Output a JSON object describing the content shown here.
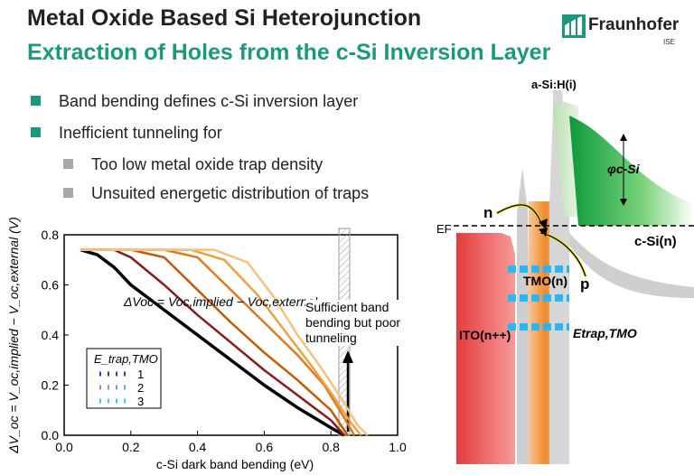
{
  "slide": {
    "title": "Metal Oxide Based Si Heterojunction",
    "subtitle": "Extraction of Holes from the c-Si Inversion Layer",
    "logo_text": "Fraunhofer",
    "logo_sub": "ISE",
    "bullets": [
      "Band bending defines c-Si inversion layer",
      "Inefficient tunneling for"
    ],
    "subbullets": [
      "Too low metal oxide trap density",
      "Unsuited energetic distribution of traps"
    ],
    "colors": {
      "title": "#222222",
      "subtitle": "#1a9a7a",
      "bullet": "#1a9a7a",
      "subbullet": "#a8a8a8"
    }
  },
  "chart_data": {
    "type": "line",
    "xlabel": "c-Si dark band bending (eV)",
    "ylabel": "ΔV_oc = V_oc,implied − V_oc,external (V)",
    "xlim": [
      0.0,
      1.0
    ],
    "ylim": [
      0.0,
      0.8
    ],
    "xticks": [
      "0.0",
      "0.2",
      "0.4",
      "0.6",
      "0.8",
      "1.0"
    ],
    "yticks": [
      "0.0",
      "0.2",
      "0.4",
      "0.6",
      "0.8"
    ],
    "curve_annotation": "ΔVoc = Voc,implied − Voc,external",
    "region_annotation": "Sufficient band bending but poor tunneling",
    "legend_title": "E_trap,TMO",
    "legend_entries": [
      "1",
      "2",
      "3"
    ],
    "series": [
      {
        "color": "#000000",
        "x": [
          0.05,
          0.1,
          0.15,
          0.2,
          0.3,
          0.4,
          0.5,
          0.6,
          0.7,
          0.8,
          0.84
        ],
        "y": [
          0.74,
          0.72,
          0.67,
          0.6,
          0.5,
          0.4,
          0.3,
          0.2,
          0.11,
          0.03,
          0.0
        ]
      },
      {
        "color": "#8b1a1a",
        "x": [
          0.05,
          0.15,
          0.2,
          0.3,
          0.4,
          0.5,
          0.6,
          0.7,
          0.8,
          0.84
        ],
        "y": [
          0.74,
          0.74,
          0.71,
          0.6,
          0.48,
          0.37,
          0.26,
          0.16,
          0.06,
          0.0
        ]
      },
      {
        "color": "#c45a00",
        "x": [
          0.05,
          0.2,
          0.3,
          0.4,
          0.5,
          0.6,
          0.7,
          0.8,
          0.85
        ],
        "y": [
          0.74,
          0.74,
          0.71,
          0.58,
          0.45,
          0.33,
          0.22,
          0.1,
          0.0
        ]
      },
      {
        "color": "#e07a20",
        "x": [
          0.05,
          0.3,
          0.4,
          0.5,
          0.6,
          0.7,
          0.78,
          0.84,
          0.87
        ],
        "y": [
          0.74,
          0.74,
          0.71,
          0.58,
          0.45,
          0.32,
          0.2,
          0.07,
          0.0
        ]
      },
      {
        "color": "#f0a040",
        "x": [
          0.05,
          0.38,
          0.48,
          0.58,
          0.66,
          0.74,
          0.8,
          0.86,
          0.89
        ],
        "y": [
          0.74,
          0.74,
          0.7,
          0.56,
          0.42,
          0.28,
          0.17,
          0.05,
          0.0
        ]
      },
      {
        "color": "#f8c080",
        "x": [
          0.05,
          0.45,
          0.55,
          0.63,
          0.7,
          0.77,
          0.83,
          0.88,
          0.91
        ],
        "y": [
          0.74,
          0.74,
          0.69,
          0.55,
          0.4,
          0.27,
          0.15,
          0.04,
          0.0
        ]
      }
    ]
  },
  "diagram": {
    "labels": {
      "asi": "a-Si:H(i)",
      "phi": "φc-Si",
      "ef": "EF",
      "csi": "c-Si(n)",
      "n": "n",
      "p": "p",
      "tmo": "TMO(n)",
      "ito": "ITO(n++)",
      "etrap": "Etrap,TMO"
    },
    "colors": {
      "ito": "#e43c3c",
      "tmo": "#f0a040",
      "asi": "#8ac27a",
      "csi": "#2ca84a",
      "traps": "#29b6f6"
    }
  }
}
